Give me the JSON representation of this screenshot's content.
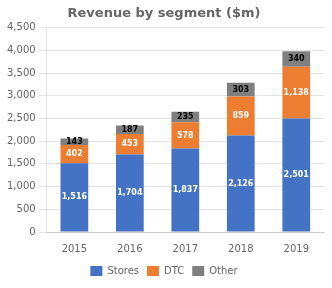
{
  "chart_data": {
    "type": "bar",
    "title": "Revenue by segment ($m)",
    "categories": [
      "2015",
      "2016",
      "2017",
      "2018",
      "2019"
    ],
    "stacked": true,
    "series": [
      {
        "name": "Stores",
        "color": "#4472C4",
        "values": [
          1516,
          1704,
          1837,
          2126,
          2501
        ],
        "value_labels": [
          "1,516",
          "1,704",
          "1,837",
          "2,126",
          "2,501"
        ]
      },
      {
        "name": "DTC",
        "color": "#ED7D31",
        "values": [
          402,
          453,
          578,
          859,
          1138
        ],
        "value_labels": [
          "402",
          "453",
          "578",
          "859",
          "1,138"
        ]
      },
      {
        "name": "Other",
        "color": "#7F7F7F",
        "values": [
          143,
          187,
          235,
          303,
          340
        ]
      }
    ],
    "ylim": [
      0,
      4500
    ],
    "yticks": [
      0,
      500,
      {
        "value": 1000,
        "label": "1,000"
      },
      {
        "value": 1500,
        "label": "1,500"
      },
      {
        "value": 2000,
        "label": "2,000"
      },
      {
        "value": 2500,
        "label": "2,500"
      },
      {
        "value": 3000,
        "label": "3,000"
      },
      {
        "value": 3500,
        "label": "3,500"
      },
      {
        "value": 4000,
        "label": "4,000"
      },
      {
        "value": 4500,
        "label": "4,500"
      }
    ],
    "grid": true,
    "legend": "bottom",
    "data_labels": true
  }
}
